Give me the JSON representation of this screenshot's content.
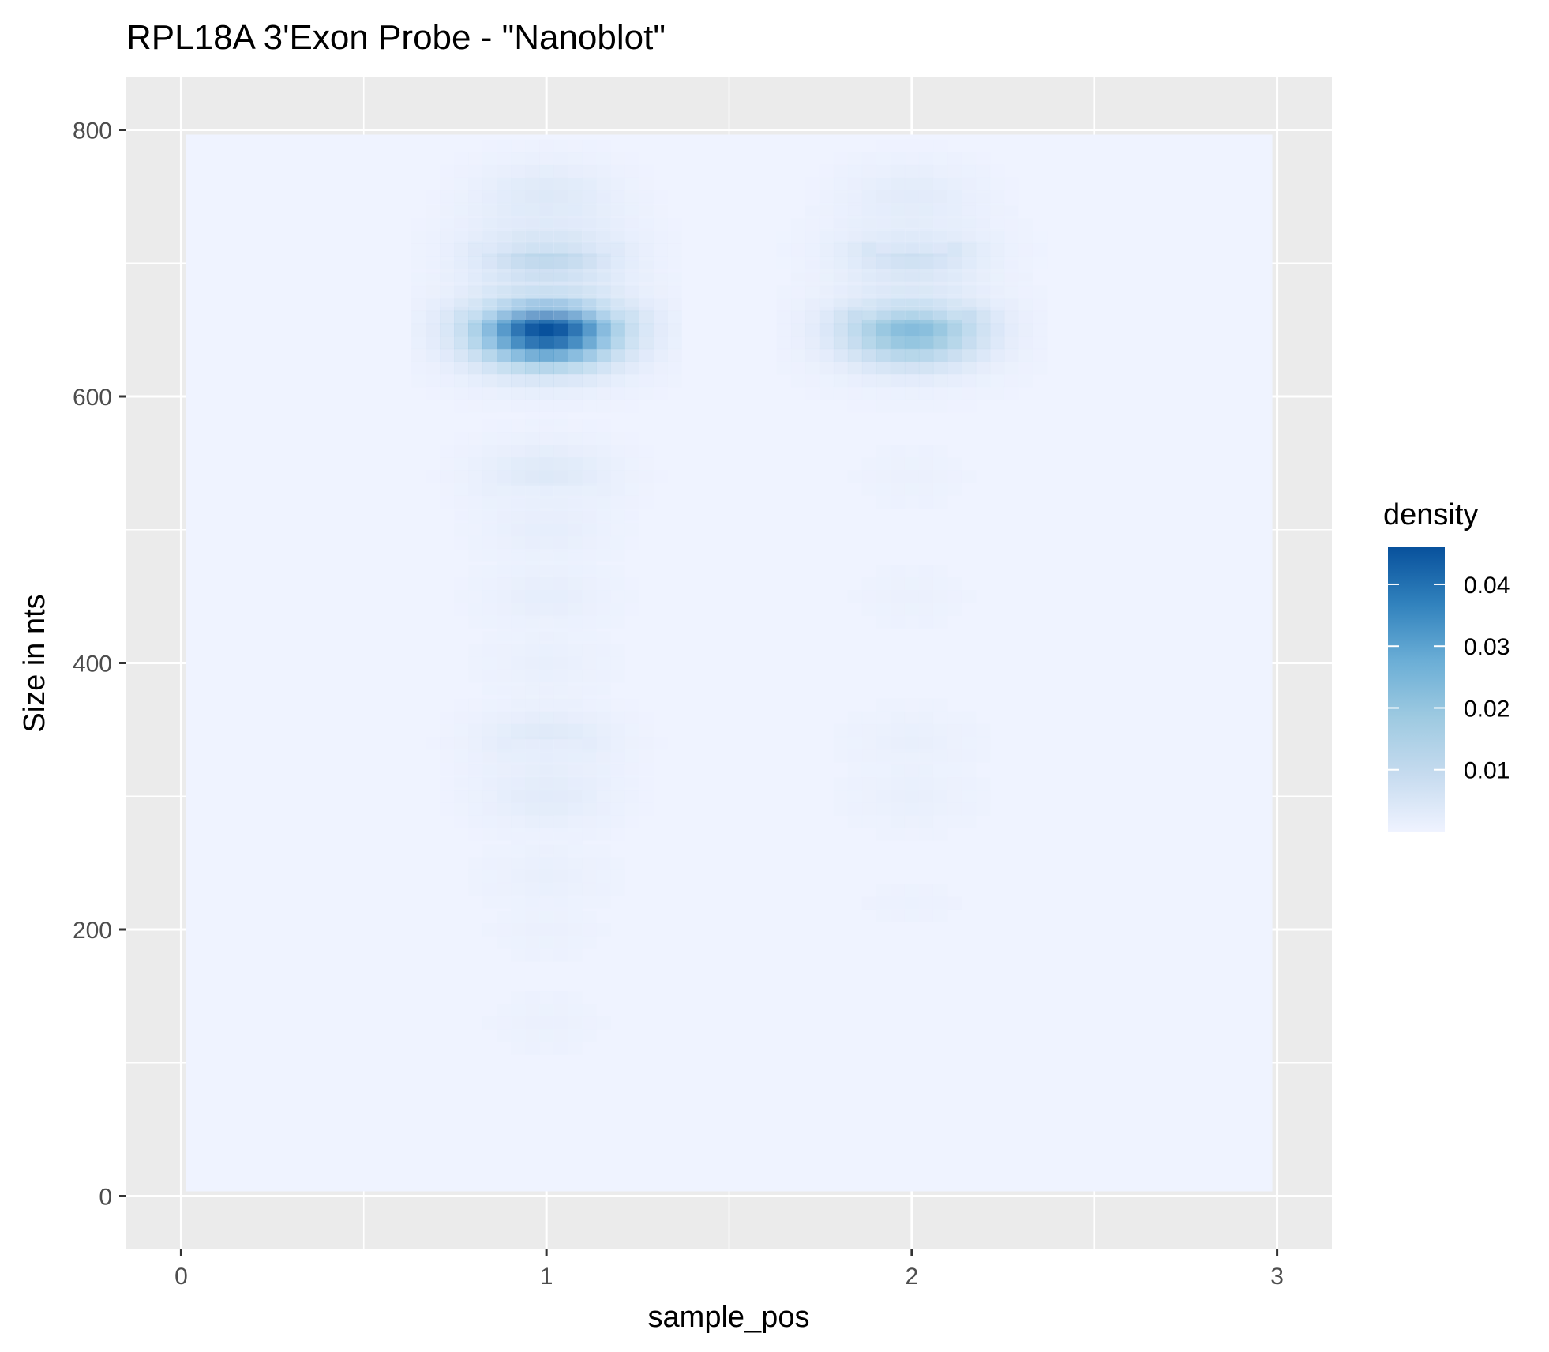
{
  "chart_data": {
    "type": "heatmap",
    "title": "RPL18A 3'Exon Probe - \"Nanoblot\"",
    "xlabel": "sample_pos",
    "ylabel": "Size in nts",
    "xlim": [
      -0.15,
      3.15
    ],
    "ylim": [
      -40,
      840
    ],
    "x_ticks": [
      {
        "value": 0,
        "label": "0"
      },
      {
        "value": 1,
        "label": "1"
      },
      {
        "value": 2,
        "label": "2"
      },
      {
        "value": 3,
        "label": "3"
      }
    ],
    "x_minor": [
      0.5,
      1.5,
      2.5
    ],
    "y_ticks": [
      {
        "value": 0,
        "label": "0"
      },
      {
        "value": 200,
        "label": "200"
      },
      {
        "value": 400,
        "label": "400"
      },
      {
        "value": 600,
        "label": "600"
      },
      {
        "value": 800,
        "label": "800"
      }
    ],
    "y_minor": [
      100,
      300,
      500,
      700
    ],
    "density_extent": {
      "x": [
        0,
        3
      ],
      "y": [
        0,
        800
      ]
    },
    "background_density": 0.0,
    "lanes": [
      {
        "sample_pos": 1,
        "bands": [
          {
            "size_nts": 650,
            "density": 0.046
          },
          {
            "size_nts": 710,
            "density": 0.012
          },
          {
            "size_nts": 750,
            "density": 0.004
          },
          {
            "size_nts": 540,
            "density": 0.004
          },
          {
            "size_nts": 500,
            "density": 0.002
          },
          {
            "size_nts": 450,
            "density": 0.002
          },
          {
            "size_nts": 400,
            "density": 0.0015
          },
          {
            "size_nts": 340,
            "density": 0.004
          },
          {
            "size_nts": 300,
            "density": 0.003
          },
          {
            "size_nts": 240,
            "density": 0.0015
          },
          {
            "size_nts": 200,
            "density": 0.001
          },
          {
            "size_nts": 130,
            "density": 0.001
          }
        ]
      },
      {
        "sample_pos": 2,
        "bands": [
          {
            "size_nts": 650,
            "density": 0.023
          },
          {
            "size_nts": 710,
            "density": 0.008
          },
          {
            "size_nts": 750,
            "density": 0.003
          },
          {
            "size_nts": 540,
            "density": 0.001
          },
          {
            "size_nts": 450,
            "density": 0.001
          },
          {
            "size_nts": 340,
            "density": 0.0015
          },
          {
            "size_nts": 300,
            "density": 0.0015
          },
          {
            "size_nts": 220,
            "density": 0.0008
          }
        ]
      }
    ],
    "legend": {
      "title": "density",
      "placement": "right",
      "min": 0.0,
      "max": 0.046,
      "breaks": [
        {
          "value": 0.01,
          "label": "0.01"
        },
        {
          "value": 0.02,
          "label": "0.02"
        },
        {
          "value": 0.03,
          "label": "0.03"
        },
        {
          "value": 0.04,
          "label": "0.04"
        }
      ],
      "colors": [
        "#eff3ff",
        "#c6dbef",
        "#9ecae1",
        "#6baed6",
        "#3182bd",
        "#08519c"
      ]
    },
    "panel_background": "#ebebeb",
    "grid_color": "#ffffff",
    "grid": true
  }
}
